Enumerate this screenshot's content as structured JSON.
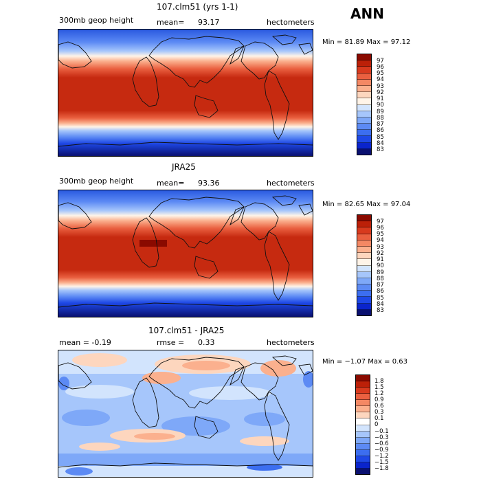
{
  "season": "ANN",
  "palette_abs": [
    "#0a1070",
    "#0a24cc",
    "#1e48e6",
    "#3c6ef0",
    "#5c8af4",
    "#7ea8f8",
    "#a6c6fb",
    "#d2e4fd",
    "#fff4e8",
    "#fdd6be",
    "#fbb08e",
    "#f48864",
    "#ea6040",
    "#d83a1e",
    "#bc2008",
    "#8a0a00"
  ],
  "palette_diff": [
    "#0a1070",
    "#0a24cc",
    "#1e48e6",
    "#3c6ef0",
    "#5c8af4",
    "#7ea8f8",
    "#a6c6fb",
    "#d2e4fd",
    "#ffffff",
    "#fdd6be",
    "#fbb08e",
    "#f48864",
    "#ea6040",
    "#d83a1e",
    "#bc2008",
    "#8a0a00"
  ],
  "panels": [
    {
      "title": "107.clm51 (yrs 1-1)",
      "left_label": "300mb geop height",
      "mean_label": "mean=",
      "mean_value": "93.17",
      "units": "hectometers",
      "minmax": "Min = 81.89  Max = 97.12",
      "levels": [
        "97",
        "96",
        "95",
        "94",
        "93",
        "92",
        "91",
        "90",
        "89",
        "88",
        "87",
        "86",
        "85",
        "84",
        "83"
      ]
    },
    {
      "title": "JRA25",
      "left_label": "300mb geop height",
      "mean_label": "mean=",
      "mean_value": "93.36",
      "units": "hectometers",
      "minmax": "Min = 82.65  Max = 97.04",
      "levels": [
        "97",
        "96",
        "95",
        "94",
        "93",
        "92",
        "91",
        "90",
        "89",
        "88",
        "87",
        "86",
        "85",
        "84",
        "83"
      ]
    },
    {
      "title": "107.clm51 - JRA25",
      "left_label": "mean =   -0.19",
      "mean_label": "rmse =",
      "mean_value": "0.33",
      "units": "hectometers",
      "minmax": "Min = −1.07  Max =   0.63",
      "levels": [
        "1.8",
        "1.5",
        "1.2",
        "0.9",
        "0.6",
        "0.3",
        "0.1",
        "0",
        "−0.1",
        "−0.3",
        "−0.6",
        "−0.9",
        "−1.2",
        "−1.5",
        "−1.8"
      ]
    }
  ]
}
